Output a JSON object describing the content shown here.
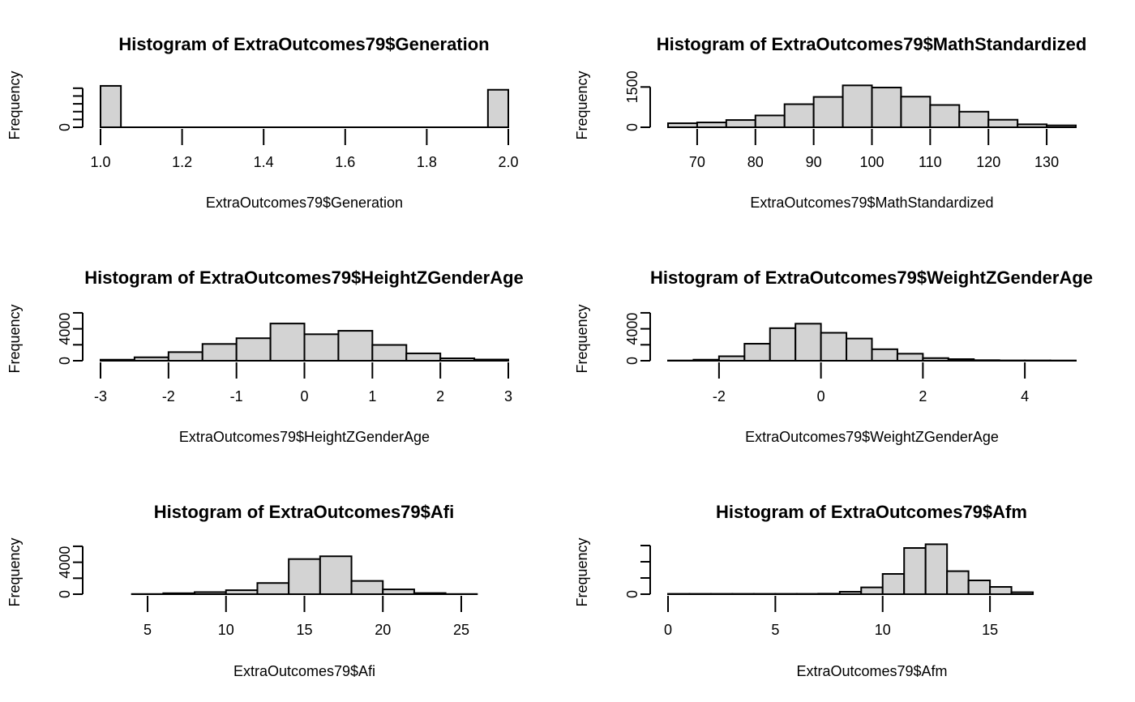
{
  "chart_data": [
    {
      "type": "bar",
      "title": "Histogram of ExtraOutcomes79$Generation",
      "xlabel": "ExtraOutcomes79$Generation",
      "ylabel": "Frequency",
      "xlim": [
        1.0,
        2.0
      ],
      "ylim": [
        0,
        5500
      ],
      "x_ticks": [
        "1.0",
        "1.2",
        "1.4",
        "1.6",
        "1.8",
        "2.0"
      ],
      "y_ticks": [
        "0"
      ],
      "y_tick_values": [
        0
      ],
      "y_minor_ticks": [
        1000,
        2000,
        3000,
        4000,
        5000
      ],
      "bin_edges": [
        1.0,
        1.05,
        1.1,
        1.15,
        1.2,
        1.25,
        1.3,
        1.35,
        1.4,
        1.45,
        1.5,
        1.55,
        1.6,
        1.65,
        1.7,
        1.75,
        1.8,
        1.85,
        1.9,
        1.95,
        2.0
      ],
      "values": [
        5300,
        0,
        0,
        0,
        0,
        0,
        0,
        0,
        0,
        0,
        0,
        0,
        0,
        0,
        0,
        0,
        0,
        0,
        0,
        4800
      ]
    },
    {
      "type": "bar",
      "title": "Histogram of ExtraOutcomes79$MathStandardized",
      "xlabel": "ExtraOutcomes79$MathStandardized",
      "ylabel": "Frequency",
      "xlim": [
        65,
        135
      ],
      "ylim": [
        0,
        1600
      ],
      "x_ticks": [
        "70",
        "80",
        "90",
        "100",
        "110",
        "120",
        "130"
      ],
      "y_ticks": [
        "0",
        "1500"
      ],
      "y_tick_values": [
        0,
        1500
      ],
      "bin_edges": [
        65,
        70,
        75,
        80,
        85,
        90,
        95,
        100,
        105,
        110,
        115,
        120,
        125,
        130,
        135
      ],
      "values": [
        150,
        180,
        270,
        440,
        860,
        1130,
        1560,
        1480,
        1140,
        830,
        580,
        280,
        110,
        70
      ]
    },
    {
      "type": "bar",
      "title": "Histogram of ExtraOutcomes79$HeightZGenderAge",
      "xlabel": "ExtraOutcomes79$HeightZGenderAge",
      "ylabel": "Frequency",
      "xlim": [
        -3,
        3
      ],
      "ylim": [
        0,
        6500
      ],
      "x_ticks": [
        "-3",
        "-2",
        "-1",
        "0",
        "1",
        "2",
        "3"
      ],
      "y_ticks": [
        "0",
        "4000"
      ],
      "y_tick_values": [
        0,
        4000
      ],
      "y_minor_ticks": [
        2000,
        6000
      ],
      "bin_edges": [
        -3.0,
        -2.5,
        -2.0,
        -1.5,
        -1.0,
        -0.5,
        0.0,
        0.5,
        1.0,
        1.5,
        2.0,
        2.5,
        3.0
      ],
      "values": [
        130,
        430,
        1080,
        2100,
        2820,
        4660,
        3320,
        3750,
        1980,
        920,
        300,
        150
      ]
    },
    {
      "type": "bar",
      "title": "Histogram of ExtraOutcomes79$WeightZGenderAge",
      "xlabel": "ExtraOutcomes79$WeightZGenderAge",
      "ylabel": "Frequency",
      "xlim": [
        -3,
        5
      ],
      "ylim": [
        0,
        6500
      ],
      "x_ticks": [
        "-2",
        "0",
        "2",
        "4"
      ],
      "y_ticks": [
        "0",
        "4000"
      ],
      "y_tick_values": [
        0,
        4000
      ],
      "y_minor_ticks": [
        2000,
        6000
      ],
      "bin_edges": [
        -3.0,
        -2.5,
        -2.0,
        -1.5,
        -1.0,
        -0.5,
        0.0,
        0.5,
        1.0,
        1.5,
        2.0,
        2.5,
        3.0,
        3.5,
        4.0,
        4.5,
        5.0
      ],
      "values": [
        30,
        130,
        560,
        2130,
        4080,
        4640,
        3500,
        2780,
        1440,
        880,
        330,
        200,
        70,
        40,
        40,
        30
      ]
    },
    {
      "type": "bar",
      "title": "Histogram of ExtraOutcomes79$Afi",
      "xlabel": "ExtraOutcomes79$Afi",
      "ylabel": "Frequency",
      "xlim": [
        2,
        28
      ],
      "ylim": [
        0,
        6500
      ],
      "x_ticks": [
        "5",
        "10",
        "15",
        "20",
        "25"
      ],
      "y_ticks": [
        "0",
        "4000"
      ],
      "y_tick_values": [
        0,
        4000
      ],
      "y_minor_ticks": [
        2000,
        6000
      ],
      "bin_edges": [
        2,
        4,
        6,
        8,
        10,
        12,
        14,
        16,
        18,
        20,
        22,
        24,
        26,
        28
      ],
      "values": [
        0,
        20,
        120,
        260,
        500,
        1400,
        4400,
        4750,
        1660,
        600,
        140,
        20,
        0
      ]
    },
    {
      "type": "bar",
      "title": "Histogram of ExtraOutcomes79$Afm",
      "xlabel": "ExtraOutcomes79$Afm",
      "ylabel": "Frequency",
      "xlim": [
        0,
        19
      ],
      "ylim": [
        0,
        3200
      ],
      "x_ticks": [
        "0",
        "5",
        "10",
        "15"
      ],
      "y_ticks": [
        "0"
      ],
      "y_tick_values": [
        0
      ],
      "y_minor_ticks": [
        1000,
        2000,
        3000
      ],
      "bin_edges": [
        0,
        1,
        2,
        3,
        4,
        5,
        6,
        7,
        8,
        9,
        10,
        11,
        12,
        13,
        14,
        15,
        16,
        17,
        18,
        19
      ],
      "values": [
        20,
        20,
        20,
        20,
        20,
        20,
        20,
        30,
        150,
        420,
        1250,
        2850,
        3080,
        1420,
        850,
        450,
        120,
        0,
        0
      ]
    }
  ]
}
